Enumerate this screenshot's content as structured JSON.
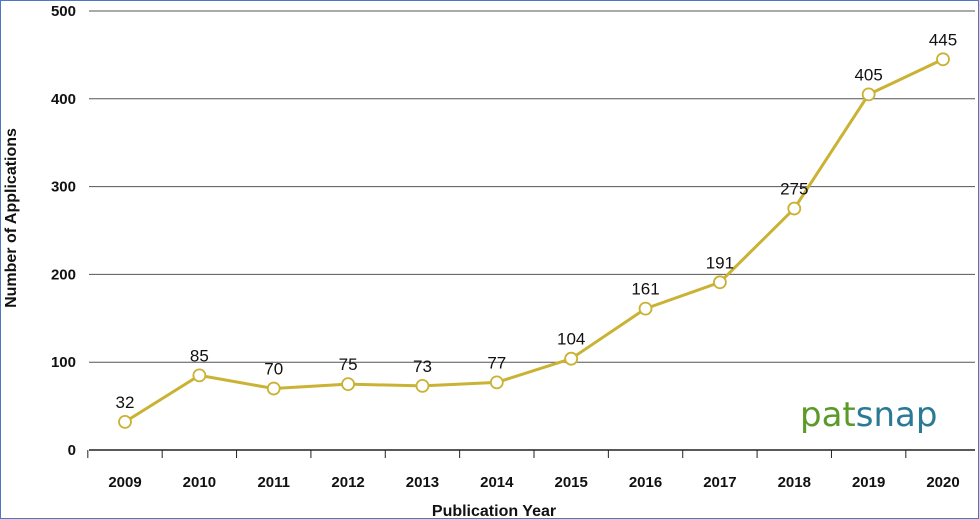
{
  "chart_data": {
    "type": "line",
    "title": "",
    "xlabel": "Publication Year",
    "ylabel": "Number of Applications",
    "categories": [
      "2009",
      "2010",
      "2011",
      "2012",
      "2013",
      "2014",
      "2015",
      "2016",
      "2017",
      "2018",
      "2019",
      "2020"
    ],
    "series": [
      {
        "values": [
          32,
          85,
          70,
          75,
          73,
          77,
          104,
          161,
          191,
          275,
          405,
          445
        ]
      }
    ],
    "ylim": [
      0,
      500
    ],
    "yticks": [
      "0",
      "100",
      "200",
      "300",
      "400",
      "500"
    ],
    "grid": true,
    "data_labels": true,
    "line_color": "#c9b234",
    "marker_fill": "#ffffff"
  },
  "branding": {
    "logo_part1": "pat",
    "logo_part2": "snap",
    "logo_color1": "#5a9a28",
    "logo_color2": "#2a7a96"
  }
}
